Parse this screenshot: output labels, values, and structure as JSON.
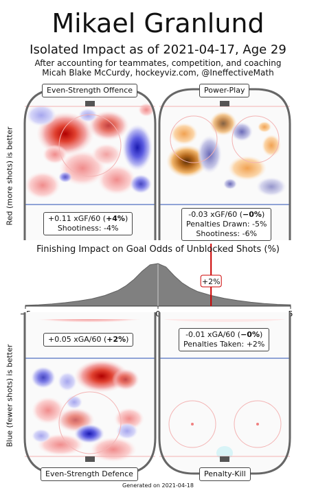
{
  "header": {
    "title": "Mikael Granlund",
    "subtitle": "Isolated Impact as of 2021-04-17, Age 29",
    "credit_line1": "After accounting for teammates, competition, and coaching",
    "credit_line2": "Micah Blake McCurdy, hockeyviz.com, @IneffectiveMath"
  },
  "panels": {
    "ev_off": {
      "label": "Even-Strength Offence",
      "stat1_prefix": "+0.11 xGF/60 (",
      "stat1_bold": "+4%",
      "stat1_suffix": ")",
      "stat2": "Shootiness: -4%"
    },
    "pp": {
      "label": "Power-Play",
      "stat1_prefix": "-0.03 xGF/60 (",
      "stat1_bold": "−0%",
      "stat1_suffix": ")",
      "stat2": "Penalties Drawn: -5%",
      "stat3": "Shootiness: -6%"
    },
    "ev_def": {
      "label": "Even-Strength Defence",
      "stat1_prefix": "+0.05 xGA/60 (",
      "stat1_bold": "+2%",
      "stat1_suffix": ")"
    },
    "pk": {
      "label": "Penalty-Kill",
      "stat1_prefix": "-0.01 xGA/60 (",
      "stat1_bold": "−0%",
      "stat1_suffix": ")",
      "stat2": "Penalties Taken: +2%"
    }
  },
  "axis_side_labels": {
    "top": "Red (more shots) is better",
    "bottom": "Blue (fewer shots) is better"
  },
  "footer": "Generated on 2021-04-18",
  "colors": {
    "positive": "#d62728",
    "negative": "#2a2ad0",
    "pp_warm": "#c87a1e",
    "distribution": "#808080",
    "marker": "#cc0000"
  },
  "chart_data": {
    "type": "area",
    "title": "Finishing Impact on Goal Odds of Unblocked Shots (%)",
    "xlim": [
      -5,
      5
    ],
    "x_ticks": [
      -5,
      0,
      5
    ],
    "distribution": {
      "x": [
        -5,
        -4.5,
        -4,
        -3.5,
        -3,
        -2.5,
        -2,
        -1.5,
        -1.2,
        -0.9,
        -0.6,
        -0.3,
        0,
        0.3,
        0.6,
        0.9,
        1.2,
        1.5,
        2,
        2.5,
        3,
        3.5,
        4,
        4.5,
        5
      ],
      "density": [
        0.02,
        0.03,
        0.05,
        0.08,
        0.12,
        0.17,
        0.25,
        0.37,
        0.48,
        0.63,
        0.82,
        0.97,
        1.0,
        0.92,
        0.72,
        0.55,
        0.43,
        0.34,
        0.25,
        0.18,
        0.13,
        0.09,
        0.06,
        0.04,
        0.03
      ]
    },
    "marker": {
      "x": 2,
      "label": "+2%"
    }
  }
}
